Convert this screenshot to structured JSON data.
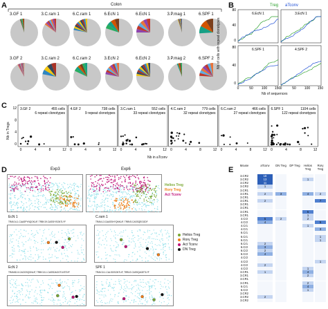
{
  "panels": {
    "A": "A",
    "B": "B",
    "C": "C",
    "D": "D",
    "E": "E"
  },
  "panelA": {
    "header": "Colon",
    "row1": [
      "3.GF 1",
      "3.C.ram 1",
      "6.C.ram 1",
      "6.EcN 1",
      "6.EcN 1",
      "3.P.mag 1",
      "6.SPF 1"
    ],
    "row2": [
      "3.GF 2",
      "3.C.ram 2",
      "6.C.ram 2",
      "3.EcN 2",
      "6.EcN 2",
      "3.P.mag 2",
      "6.SPF 2"
    ],
    "pie_repeat_fraction": [
      [
        0.05,
        0.15,
        0.22,
        0.2,
        0.25,
        0.05,
        0.26
      ],
      [
        0.08,
        0.22,
        0.18,
        0.22,
        0.24,
        0.06,
        0.24
      ]
    ]
  },
  "panelB": {
    "legend": {
      "treg": "Treg",
      "atconv": "aTconv"
    },
    "ylabel": "Nb of cells with repeat clonotypes",
    "xlabel": "Nb of sequences",
    "subplots": [
      "6.EcN 1",
      "3.EcN 1",
      "6.SPF 1",
      "4.SPF 2"
    ],
    "yticks_top": [
      "80",
      "40",
      "0"
    ],
    "yticks_bottom": [
      "80",
      "40",
      "0"
    ],
    "xticks": [
      "0",
      "50",
      "100",
      "150"
    ],
    "xticks2": [
      "0",
      "50",
      "100",
      "150"
    ],
    "colors": {
      "treg": "#2ca02c",
      "atconv": "#1f4fd6"
    }
  },
  "panelC": {
    "ylabel": "Nb in Tregs",
    "xlabel": "Nb in aTconv",
    "yticks": [
      "12",
      "8",
      "4",
      "0"
    ],
    "xticks": [
      "0",
      "4",
      "8",
      "12"
    ],
    "plots": [
      {
        "name": "3.GF 2",
        "cells": "455 cells",
        "repeat": "6 repeat clonotypes"
      },
      {
        "name": "4.GF 2",
        "cells": "738 cells",
        "repeat": "9 repeat clonotypes"
      },
      {
        "name": "3.C.ram 1",
        "cells": "552 cells",
        "repeat": "33 repeat clonotypes"
      },
      {
        "name": "4.C.ram 2",
        "cells": "779 cells",
        "repeat": "32 repeat clonotypes"
      },
      {
        "name": "6.C.ram 2",
        "cells": "466 cells",
        "repeat": "27 repeat clonotypes"
      },
      {
        "name": "6.SPF 1",
        "cells": "1104 cells",
        "repeat": "122 repeat clonotypes"
      }
    ]
  },
  "panelD": {
    "exp3": "Exp3",
    "exp6": "Exp6",
    "legend_top": [
      "Helios Treg",
      "Rorγ Treg",
      "Act Tconv"
    ],
    "legend_bottom": [
      "Helios Treg",
      "Rorγ Treg",
      "Act Tconv",
      "DN Treg"
    ],
    "sub": [
      {
        "name": "EcN 1",
        "seq": "TRAV14-1.CAASPYNQGKLIF, TRBV19.CASSIYSGNTLYF"
      },
      {
        "name": "C.ram 1",
        "seq": "TRAV4-3.CAASSHYQNKLIF, TRBV5.CASSQEGGDF"
      },
      {
        "name": "EcN 2",
        "seq": "TRAV6D-5.CAGGSQGNLIF, TRBV13-1.CASSDAGGTLNTEVF"
      },
      {
        "name": "SPF 1",
        "seq": "TRAV13-1.CALSGSGNTLIF, TRBV2.CASSQAGETLYF"
      }
    ],
    "colors": {
      "helios": "#7aa832",
      "rorg": "#f07f18",
      "act": "#c0157a",
      "dn": "#111111",
      "bg": "#8fe0ea"
    }
  },
  "panelE": {
    "headers": [
      "Mouse",
      "aTconv",
      "DN Treg",
      "DP Treg",
      "Helios Treg",
      "Rorγ Treg"
    ],
    "rows": [
      [
        "3.CR2",
        "18",
        "",
        "",
        "",
        ""
      ],
      [
        "3.CR2",
        "13",
        "",
        "",
        "1",
        ""
      ],
      [
        "3.CR2",
        "11",
        "",
        "",
        "",
        ""
      ],
      [
        "3.CR2",
        "1",
        "",
        "",
        "",
        ""
      ],
      [
        "3.CR1",
        "",
        "",
        "",
        "",
        ""
      ],
      [
        "3.CR1",
        "2",
        "3",
        "",
        "4",
        "2"
      ],
      [
        "3.CR1",
        "",
        "",
        "",
        "",
        ""
      ],
      [
        "3.CR1",
        "2",
        "",
        "",
        "",
        "7"
      ],
      [
        "3.CR1",
        "",
        "",
        "",
        "",
        ""
      ],
      [
        "3.CR1",
        "",
        "",
        "",
        "",
        ""
      ],
      [
        "3.CR1",
        "",
        "",
        "",
        "5",
        ""
      ],
      [
        "3.CR1",
        "",
        "",
        "",
        "1",
        ""
      ],
      [
        "4.Cr2",
        "5",
        "2",
        "",
        "2",
        ""
      ],
      [
        "4.Cr2",
        "4",
        "",
        "",
        "",
        "5"
      ],
      [
        "4.Cr1",
        "",
        "",
        "",
        "1",
        ""
      ],
      [
        "4.Cr1",
        "",
        "",
        "",
        "",
        "3"
      ],
      [
        "6.Cr1",
        "",
        "",
        "",
        "",
        ""
      ],
      [
        "6.Cr1",
        "",
        "",
        "",
        "",
        "1"
      ],
      [
        "6.Cr1",
        "",
        "",
        "",
        "",
        "1"
      ],
      [
        "6.Cr1",
        "2",
        "",
        "",
        "",
        ""
      ],
      [
        "6.Cr2",
        "3",
        "",
        "",
        "",
        ""
      ],
      [
        "6.Cr2",
        "2",
        "",
        "",
        "",
        ""
      ],
      [
        "6.Cr2",
        "4",
        "",
        "",
        "",
        ""
      ],
      [
        "4.Cr2",
        "",
        "",
        "",
        "",
        ""
      ],
      [
        "4.Cr2",
        "",
        "",
        "",
        "",
        "1"
      ],
      [
        "4.Cr2",
        "2",
        "",
        "",
        "",
        ""
      ],
      [
        "4.Cr2",
        "",
        "",
        "",
        "1",
        ""
      ],
      [
        "3.CR1",
        "1",
        "",
        "",
        "4",
        ""
      ],
      [
        "3.CR1",
        "",
        "",
        "",
        "2",
        ""
      ],
      [
        "3.CR1",
        "",
        "",
        "",
        "",
        ""
      ],
      [
        "3.CR1",
        "",
        "",
        "",
        "2",
        ""
      ],
      [
        "6.Cr1",
        "",
        "",
        "",
        "4",
        ""
      ],
      [
        "6.Cr2",
        "",
        "",
        "",
        "1",
        ""
      ],
      [
        "3.CR2",
        "",
        "",
        "",
        "",
        ""
      ],
      [
        "3.CR2",
        "2",
        "",
        "",
        "",
        ""
      ],
      [
        "3.CR2",
        "",
        "",
        "",
        "",
        ""
      ]
    ]
  }
}
